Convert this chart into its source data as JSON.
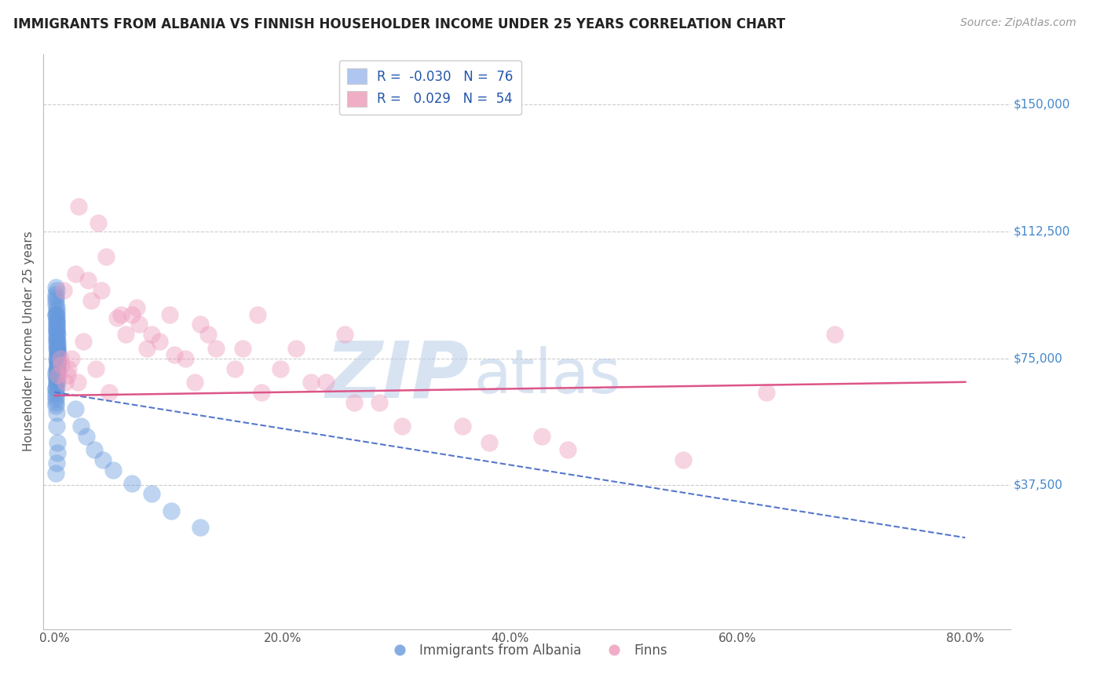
{
  "title": "IMMIGRANTS FROM ALBANIA VS FINNISH HOUSEHOLDER INCOME UNDER 25 YEARS CORRELATION CHART",
  "source": "Source: ZipAtlas.com",
  "ylabel": "Householder Income Under 25 years",
  "xlabel_ticks": [
    "0.0%",
    "20.0%",
    "40.0%",
    "60.0%",
    "80.0%"
  ],
  "xlabel_vals": [
    0.0,
    20.0,
    40.0,
    60.0,
    80.0
  ],
  "ytick_labels": [
    "$37,500",
    "$75,000",
    "$112,500",
    "$150,000"
  ],
  "ytick_vals": [
    37500,
    75000,
    112500,
    150000
  ],
  "ylim": [
    -5000,
    165000
  ],
  "xlim": [
    -1,
    84
  ],
  "legend_entries": [
    {
      "label": "R =  -0.030   N =  76",
      "color": "#aec6f0"
    },
    {
      "label": "R =   0.029   N =  54",
      "color": "#f0aec6"
    }
  ],
  "watermark_zip": "ZIP",
  "watermark_atlas": "atlas",
  "watermark_color_zip": "#b8cce8",
  "watermark_color_atlas": "#b8cce8",
  "blue_color": "#6699dd",
  "pink_color": "#ee99bb",
  "blue_line_color": "#5577cc",
  "pink_line_color": "#dd5588",
  "grid_color": "#cccccc",
  "background_color": "#ffffff",
  "blue_x": [
    0.15,
    0.18,
    0.22,
    0.12,
    0.08,
    0.25,
    0.19,
    0.14,
    0.21,
    0.16,
    0.11,
    0.23,
    0.17,
    0.13,
    0.2,
    0.09,
    0.24,
    0.15,
    0.1,
    0.18,
    0.22,
    0.14,
    0.19,
    0.12,
    0.07,
    0.25,
    0.16,
    0.21,
    0.13,
    0.08,
    0.2,
    0.17,
    0.11,
    0.23,
    0.15,
    0.19,
    0.14,
    0.22,
    0.1,
    0.16,
    0.25,
    0.12,
    0.18,
    0.21,
    0.09,
    0.13,
    0.17,
    0.2,
    0.24,
    0.11,
    0.16,
    0.14,
    0.19,
    0.08,
    0.22,
    0.12,
    0.15,
    0.1,
    1.8,
    2.3,
    2.8,
    3.5,
    4.2,
    5.1,
    6.8,
    8.5,
    10.2,
    12.8,
    0.18,
    0.21,
    0.13,
    0.16,
    0.2,
    0.23,
    0.17,
    0.11
  ],
  "blue_y": [
    75000,
    82000,
    78000,
    88000,
    92000,
    72000,
    85000,
    68000,
    79000,
    84000,
    91000,
    74000,
    80000,
    95000,
    77000,
    65000,
    73000,
    86000,
    62000,
    81000,
    76000,
    89000,
    83000,
    71000,
    66000,
    78000,
    85000,
    74000,
    69000,
    93000,
    80000,
    87000,
    64000,
    76000,
    72000,
    88000,
    67000,
    82000,
    96000,
    79000,
    73000,
    70000,
    84000,
    77000,
    63000,
    90000,
    86000,
    75000,
    71000,
    94000,
    69000,
    83000,
    78000,
    61000,
    74000,
    88000,
    81000,
    66000,
    60000,
    55000,
    52000,
    48000,
    45000,
    42000,
    38000,
    35000,
    30000,
    25000,
    68000,
    72000,
    59000,
    55000,
    50000,
    47000,
    44000,
    41000
  ],
  "pink_x": [
    0.5,
    1.2,
    2.1,
    3.8,
    0.8,
    1.8,
    4.5,
    6.2,
    2.9,
    5.5,
    8.1,
    3.2,
    7.4,
    10.5,
    5.8,
    12.3,
    4.1,
    9.2,
    15.8,
    6.8,
    11.5,
    18.2,
    8.5,
    14.2,
    22.5,
    7.2,
    19.8,
    12.8,
    26.3,
    10.1,
    16.5,
    30.5,
    13.5,
    23.8,
    38.2,
    17.8,
    28.5,
    45.1,
    21.2,
    35.8,
    55.2,
    25.5,
    42.8,
    62.5,
    0.3,
    0.9,
    1.5,
    2.5,
    3.6,
    4.8,
    0.6,
    1.1,
    2.0,
    68.5
  ],
  "pink_y": [
    75000,
    72000,
    120000,
    115000,
    95000,
    100000,
    105000,
    82000,
    98000,
    87000,
    78000,
    92000,
    85000,
    76000,
    88000,
    68000,
    95000,
    80000,
    72000,
    88000,
    75000,
    65000,
    82000,
    78000,
    68000,
    90000,
    72000,
    85000,
    62000,
    88000,
    78000,
    55000,
    82000,
    68000,
    50000,
    88000,
    62000,
    48000,
    78000,
    55000,
    45000,
    82000,
    52000,
    65000,
    70000,
    68000,
    75000,
    80000,
    72000,
    65000,
    73000,
    70000,
    68000,
    82000
  ],
  "blue_line_x0": 0,
  "blue_line_y0": 65000,
  "blue_line_x1": 80,
  "blue_line_y1": 22000,
  "pink_line_x0": 0,
  "pink_line_y0": 64000,
  "pink_line_x1": 80,
  "pink_line_y1": 68000
}
